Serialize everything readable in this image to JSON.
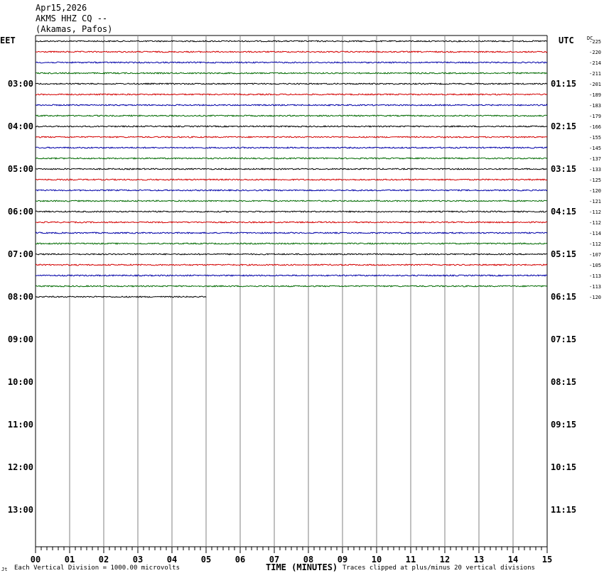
{
  "header": {
    "date": "Apr15,2026",
    "station": "AKMS HHZ CQ --",
    "location": "(Akamas, Pafos)"
  },
  "left_tz": "EET",
  "right_tz": "UTC",
  "dc_label": "DC",
  "footer": {
    "corner_mark": "Jt",
    "scale_text": "Each Vertical Division = 1000.00 microvolts",
    "clip_text": "Traces clipped at plus/minus 20 vertical divisions"
  },
  "colors": {
    "trace_cycle": [
      "#000000",
      "#d40000",
      "#0000a8",
      "#006a00"
    ],
    "grid": "#808080",
    "background": "#ffffff"
  },
  "chart_data": {
    "type": "line",
    "title": "",
    "xlabel": "TIME (MINUTES)",
    "x_ticks": [
      "00",
      "01",
      "02",
      "03",
      "04",
      "05",
      "06",
      "07",
      "08",
      "09",
      "10",
      "11",
      "12",
      "13",
      "14",
      "15"
    ],
    "xlim": [
      0,
      15
    ],
    "left_hour_labels": [
      "03:00",
      "04:00",
      "05:00",
      "06:00",
      "07:00",
      "08:00",
      "09:00",
      "10:00",
      "11:00",
      "12:00",
      "13:00"
    ],
    "right_hour_labels": [
      "01:15",
      "02:15",
      "03:15",
      "04:15",
      "05:15",
      "06:15",
      "07:15",
      "08:15",
      "09:15",
      "10:15",
      "11:15"
    ],
    "rows_per_hour": 4,
    "first_labeled_row": 4,
    "total_row_slots": 48,
    "series": [
      {
        "row": 0,
        "dc": "-225",
        "end_minute": 15
      },
      {
        "row": 1,
        "dc": "-220",
        "end_minute": 15
      },
      {
        "row": 2,
        "dc": "-214",
        "end_minute": 15
      },
      {
        "row": 3,
        "dc": "-211",
        "end_minute": 15
      },
      {
        "row": 4,
        "dc": "-201",
        "end_minute": 15
      },
      {
        "row": 5,
        "dc": "-189",
        "end_minute": 15
      },
      {
        "row": 6,
        "dc": "-183",
        "end_minute": 15
      },
      {
        "row": 7,
        "dc": "-179",
        "end_minute": 15
      },
      {
        "row": 8,
        "dc": "-166",
        "end_minute": 15
      },
      {
        "row": 9,
        "dc": "-155",
        "end_minute": 15
      },
      {
        "row": 10,
        "dc": "-145",
        "end_minute": 15
      },
      {
        "row": 11,
        "dc": "-137",
        "end_minute": 15
      },
      {
        "row": 12,
        "dc": "-133",
        "end_minute": 15
      },
      {
        "row": 13,
        "dc": "-125",
        "end_minute": 15
      },
      {
        "row": 14,
        "dc": "-120",
        "end_minute": 15
      },
      {
        "row": 15,
        "dc": "-121",
        "end_minute": 15
      },
      {
        "row": 16,
        "dc": "-112",
        "end_minute": 15
      },
      {
        "row": 17,
        "dc": "-112",
        "end_minute": 15
      },
      {
        "row": 18,
        "dc": "-114",
        "end_minute": 15
      },
      {
        "row": 19,
        "dc": "-112",
        "end_minute": 15
      },
      {
        "row": 20,
        "dc": "-107",
        "end_minute": 15
      },
      {
        "row": 21,
        "dc": "-105",
        "end_minute": 15
      },
      {
        "row": 22,
        "dc": "-113",
        "end_minute": 15
      },
      {
        "row": 23,
        "dc": "-113",
        "end_minute": 15
      },
      {
        "row": 24,
        "dc": "-120",
        "end_minute": 5
      }
    ]
  }
}
